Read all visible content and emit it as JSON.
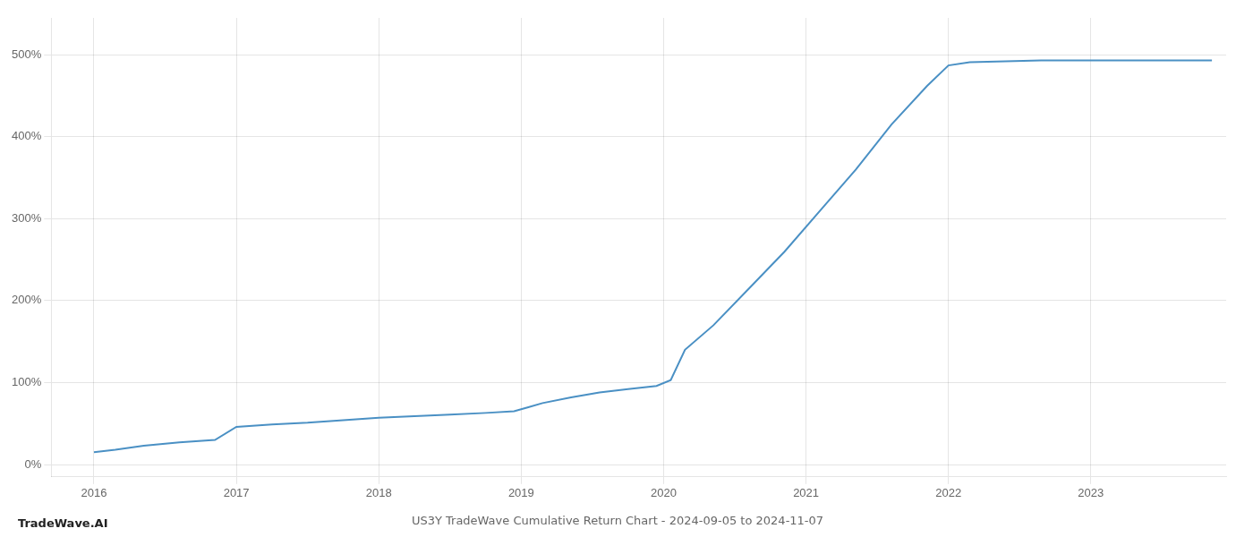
{
  "chart_data": {
    "type": "line",
    "title": "US3Y TradeWave Cumulative Return Chart - 2024-09-05 to 2024-11-07",
    "annotations": [
      "TradeWave.AI"
    ],
    "x": [
      2016.0,
      2016.15,
      2016.35,
      2016.6,
      2016.85,
      2017.0,
      2017.25,
      2017.5,
      2017.75,
      2018.0,
      2018.25,
      2018.5,
      2018.75,
      2018.95,
      2019.05,
      2019.15,
      2019.35,
      2019.55,
      2019.75,
      2019.95,
      2020.05,
      2020.15,
      2020.35,
      2020.6,
      2020.85,
      2021.1,
      2021.35,
      2021.6,
      2021.85,
      2022.0,
      2022.15,
      2022.4,
      2022.65,
      2022.85,
      2023.0,
      2023.3,
      2023.65,
      2023.85
    ],
    "values": [
      15,
      18,
      23,
      27,
      30,
      46,
      49,
      51,
      54,
      57,
      59,
      61,
      63,
      65,
      70,
      75,
      82,
      88,
      92,
      96,
      103,
      140,
      170,
      215,
      260,
      310,
      360,
      415,
      462,
      487,
      491,
      492,
      493,
      493,
      493,
      493,
      493,
      493
    ],
    "color": "#4a90c4",
    "xlim": [
      2015.7,
      2023.95
    ],
    "ylim": [
      -15,
      545
    ],
    "xticks": [
      2016,
      2017,
      2018,
      2019,
      2020,
      2021,
      2022,
      2023
    ],
    "yticks": [
      {
        "value": 0,
        "label": "0%"
      },
      {
        "value": 100,
        "label": "100%"
      },
      {
        "value": 200,
        "label": "200%"
      },
      {
        "value": 300,
        "label": "300%"
      },
      {
        "value": 400,
        "label": "400%"
      },
      {
        "value": 500,
        "label": "500%"
      }
    ],
    "grid": true
  }
}
